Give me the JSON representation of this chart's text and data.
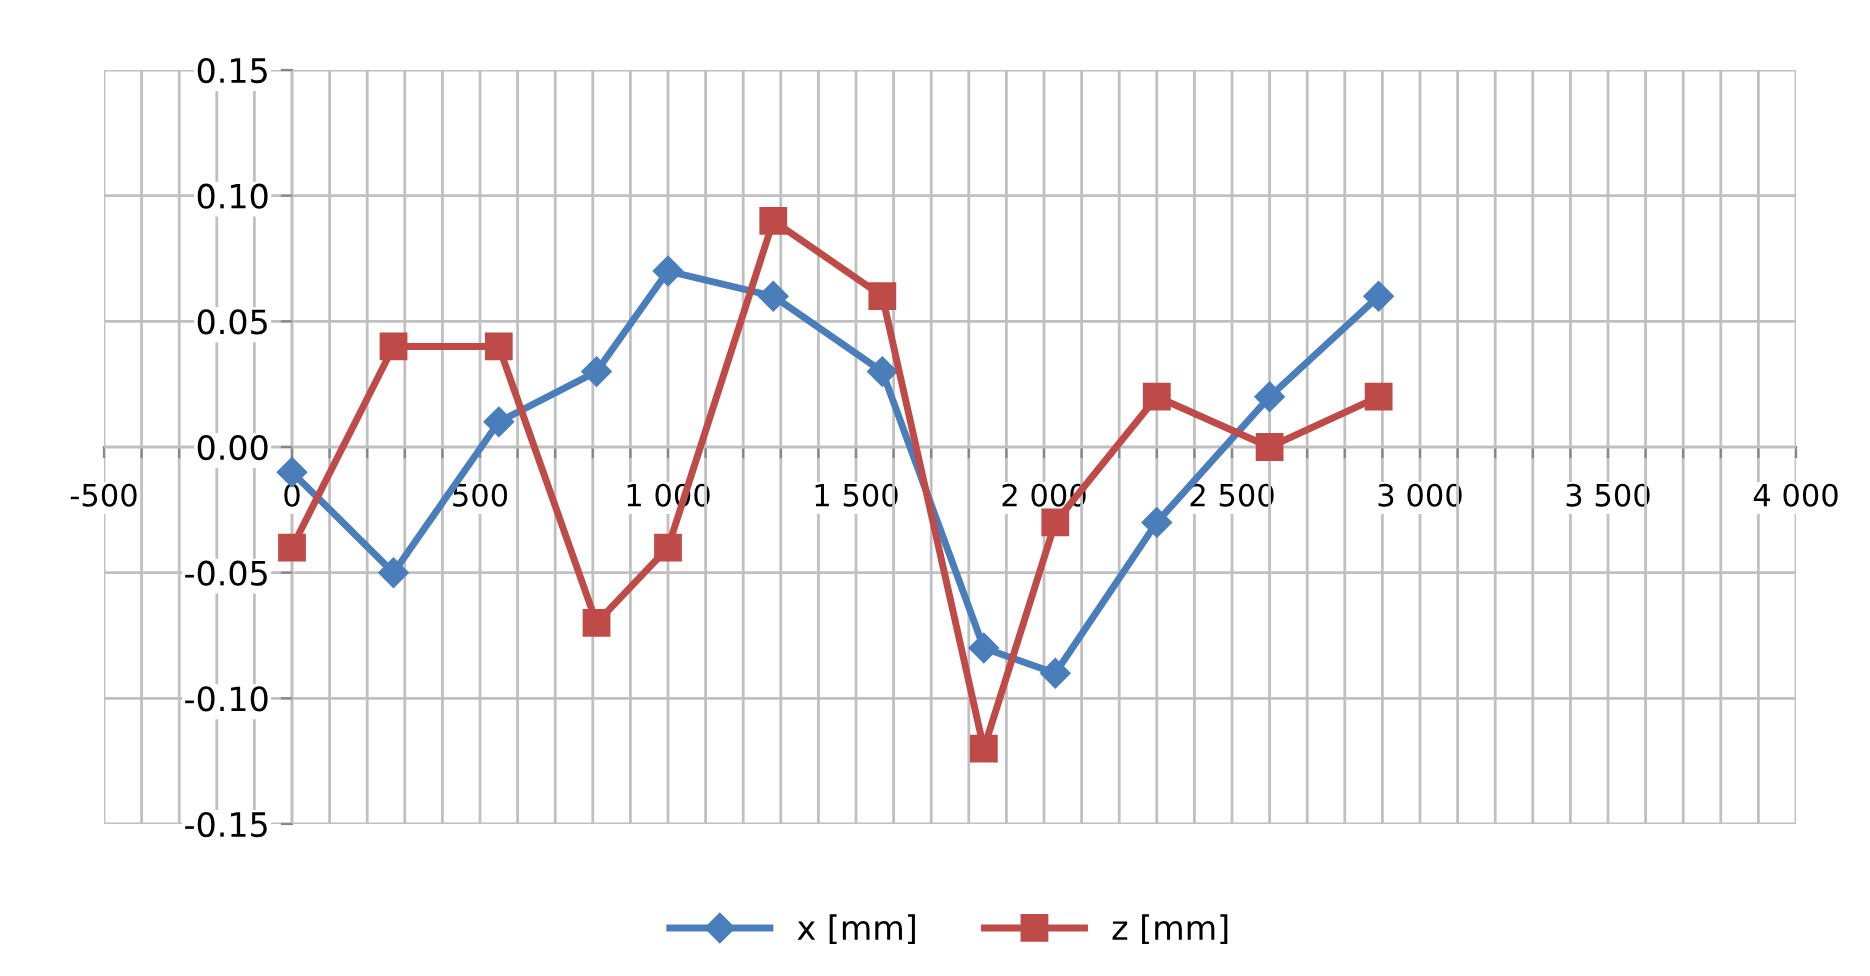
{
  "chart_data": {
    "type": "line",
    "x": [
      0,
      270,
      550,
      810,
      1000,
      1280,
      1570,
      1840,
      2030,
      2300,
      2600,
      2890
    ],
    "series": [
      {
        "name": "x [mm]",
        "color": "#4a7ebb",
        "marker": "diamond",
        "values": [
          -0.01,
          -0.05,
          0.01,
          0.03,
          0.07,
          0.06,
          0.03,
          -0.08,
          -0.09,
          -0.03,
          0.02,
          0.06
        ]
      },
      {
        "name": "z [mm]",
        "color": "#be4b48",
        "marker": "square",
        "values": [
          -0.04,
          0.04,
          0.04,
          -0.07,
          -0.04,
          0.09,
          0.06,
          -0.12,
          -0.03,
          0.02,
          0.0,
          0.02
        ]
      }
    ],
    "xlim": [
      -500,
      4000
    ],
    "xticks": [
      {
        "value": -500,
        "label": "-500"
      },
      {
        "value": -400,
        "label": null
      },
      {
        "value": -300,
        "label": null
      },
      {
        "value": -200,
        "label": null
      },
      {
        "value": -100,
        "label": null
      },
      {
        "value": 0,
        "label": "0"
      },
      {
        "value": 100,
        "label": null
      },
      {
        "value": 200,
        "label": null
      },
      {
        "value": 300,
        "label": null
      },
      {
        "value": 400,
        "label": null
      },
      {
        "value": 500,
        "label": "500"
      },
      {
        "value": 600,
        "label": null
      },
      {
        "value": 700,
        "label": null
      },
      {
        "value": 800,
        "label": null
      },
      {
        "value": 900,
        "label": null
      },
      {
        "value": 1000,
        "label": "1 000"
      },
      {
        "value": 1100,
        "label": null
      },
      {
        "value": 1200,
        "label": null
      },
      {
        "value": 1300,
        "label": null
      },
      {
        "value": 1400,
        "label": null
      },
      {
        "value": 1500,
        "label": "1 500"
      },
      {
        "value": 1600,
        "label": null
      },
      {
        "value": 1700,
        "label": null
      },
      {
        "value": 1800,
        "label": null
      },
      {
        "value": 1900,
        "label": null
      },
      {
        "value": 2000,
        "label": "2 000"
      },
      {
        "value": 2100,
        "label": null
      },
      {
        "value": 2200,
        "label": null
      },
      {
        "value": 2300,
        "label": null
      },
      {
        "value": 2400,
        "label": null
      },
      {
        "value": 2500,
        "label": "2 500"
      },
      {
        "value": 2600,
        "label": null
      },
      {
        "value": 2700,
        "label": null
      },
      {
        "value": 2800,
        "label": null
      },
      {
        "value": 2900,
        "label": null
      },
      {
        "value": 3000,
        "label": "3 000"
      },
      {
        "value": 3100,
        "label": null
      },
      {
        "value": 3200,
        "label": null
      },
      {
        "value": 3300,
        "label": null
      },
      {
        "value": 3400,
        "label": null
      },
      {
        "value": 3500,
        "label": "3 500"
      },
      {
        "value": 3600,
        "label": null
      },
      {
        "value": 3700,
        "label": null
      },
      {
        "value": 3800,
        "label": null
      },
      {
        "value": 3900,
        "label": null
      },
      {
        "value": 4000,
        "label": "4 000"
      }
    ],
    "ylim": [
      -0.15,
      0.15
    ],
    "yticks": [
      {
        "value": -0.15,
        "label": "-0.15"
      },
      {
        "value": -0.1,
        "label": "-0.10"
      },
      {
        "value": -0.05,
        "label": "-0.05"
      },
      {
        "value": 0,
        "label": "0.00"
      },
      {
        "value": 0.05,
        "label": "0.05"
      },
      {
        "value": 0.1,
        "label": "0.10"
      },
      {
        "value": 0.15,
        "label": "0.15"
      }
    ],
    "grid": true,
    "legend": "bottom",
    "line_style": "solid"
  }
}
